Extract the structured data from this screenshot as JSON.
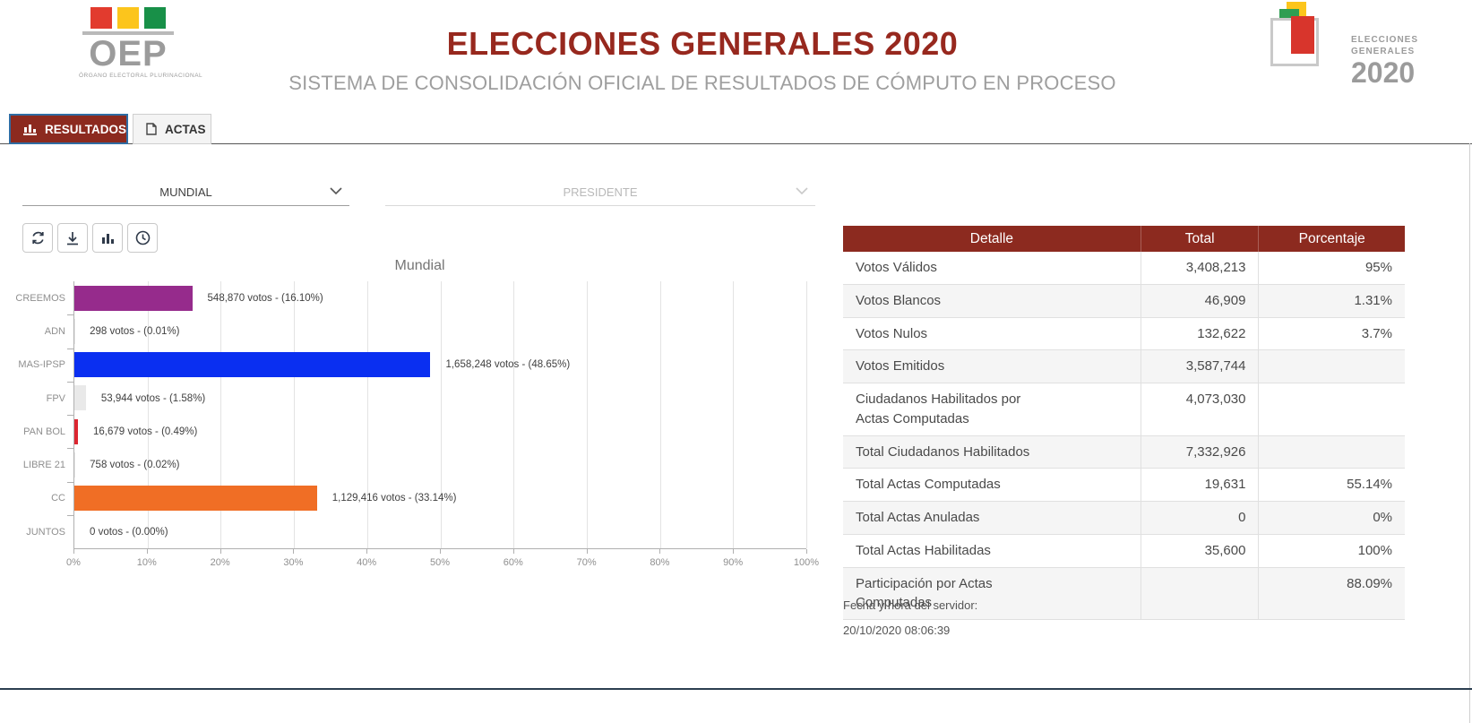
{
  "header": {
    "oep_logo": {
      "text": "OEP",
      "subtext": "ÓRGANO ELECTORAL PLURINACIONAL",
      "square_colors": [
        "#e23b2e",
        "#fcc51c",
        "#189048"
      ]
    },
    "title": "ELECCIONES GENERALES 2020",
    "subtitle": "SISTEMA DE CONSOLIDACIÓN OFICIAL DE RESULTADOS DE CÓMPUTO EN PROCESO",
    "right_logo": {
      "line1": "ELECCIONES",
      "line2": "GENERALES",
      "year": "2020"
    }
  },
  "tabs": {
    "resultados": {
      "label": "RESULTADOS",
      "active": true
    },
    "actas": {
      "label": "ACTAS",
      "active": false
    }
  },
  "filters": {
    "scope": {
      "value": "MUNDIAL",
      "disabled": false
    },
    "contest": {
      "value": "PRESIDENTE",
      "disabled": true
    }
  },
  "toolbar": {
    "buttons": [
      "refresh",
      "download",
      "bar-chart",
      "clock"
    ]
  },
  "chart_data": {
    "type": "bar",
    "orientation": "horizontal",
    "title": "Mundial",
    "categories": [
      "CREEMOS",
      "ADN",
      "MAS-IPSP",
      "FPV",
      "PAN BOL",
      "LIBRE 21",
      "CC",
      "JUNTOS"
    ],
    "values": [
      16.1,
      0.01,
      48.65,
      1.58,
      0.49,
      0.02,
      33.14,
      0.0
    ],
    "votes": [
      548870,
      298,
      1658248,
      53944,
      16679,
      758,
      1129416,
      0
    ],
    "labels": [
      "548,870 votos - (16.10%)",
      "298 votos - (0.01%)",
      "1,658,248 votos - (48.65%)",
      "53,944 votos - (1.58%)",
      "16,679 votos - (0.49%)",
      "758 votos - (0.02%)",
      "1,129,416 votos - (33.14%)",
      "0 votos - (0.00%)"
    ],
    "colors": [
      "#962b8c",
      "#e9e9e9",
      "#0a2ff1",
      "#e9e9e9",
      "#dc2631",
      "#e9e9e9",
      "#f06e25",
      "#e9e9e9"
    ],
    "xlabel": "",
    "ylabel": "",
    "xlim": [
      0,
      100
    ],
    "x_ticks": [
      "0%",
      "10%",
      "20%",
      "30%",
      "40%",
      "50%",
      "60%",
      "70%",
      "80%",
      "90%",
      "100%"
    ],
    "grid": true,
    "legend": false
  },
  "results_table": {
    "headers": [
      "Detalle",
      "Total",
      "Porcentaje"
    ],
    "rows": [
      {
        "detalle": "Votos Válidos",
        "total": "3,408,213",
        "porcentaje": "95%"
      },
      {
        "detalle": "Votos Blancos",
        "total": "46,909",
        "porcentaje": "1.31%"
      },
      {
        "detalle": "Votos Nulos",
        "total": "132,622",
        "porcentaje": "3.7%"
      },
      {
        "detalle": "Votos Emitidos",
        "total": "3,587,744",
        "porcentaje": ""
      },
      {
        "detalle": "Ciudadanos Habilitados por\nActas Computadas",
        "total": "4,073,030",
        "porcentaje": ""
      },
      {
        "detalle": "Total Ciudadanos Habilitados",
        "total": "7,332,926",
        "porcentaje": ""
      },
      {
        "detalle": "Total Actas Computadas",
        "total": "19,631",
        "porcentaje": "55.14%"
      },
      {
        "detalle": "Total Actas Anuladas",
        "total": "0",
        "porcentaje": "0%"
      },
      {
        "detalle": "Total Actas Habilitadas",
        "total": "35,600",
        "porcentaje": "100%"
      },
      {
        "detalle": "Participación por Actas\nComputadas",
        "total": "",
        "porcentaje": "88.09%"
      }
    ]
  },
  "footer": {
    "server_time_label": "Fecha y hora del servidor:",
    "server_time": "20/10/2020 08:06:39"
  },
  "colors": {
    "brand_maroon": "#8c2a1f",
    "title_red": "#97281e",
    "active_tab_border": "#2f6da4",
    "subtitle_gray": "#9e9e9e"
  }
}
